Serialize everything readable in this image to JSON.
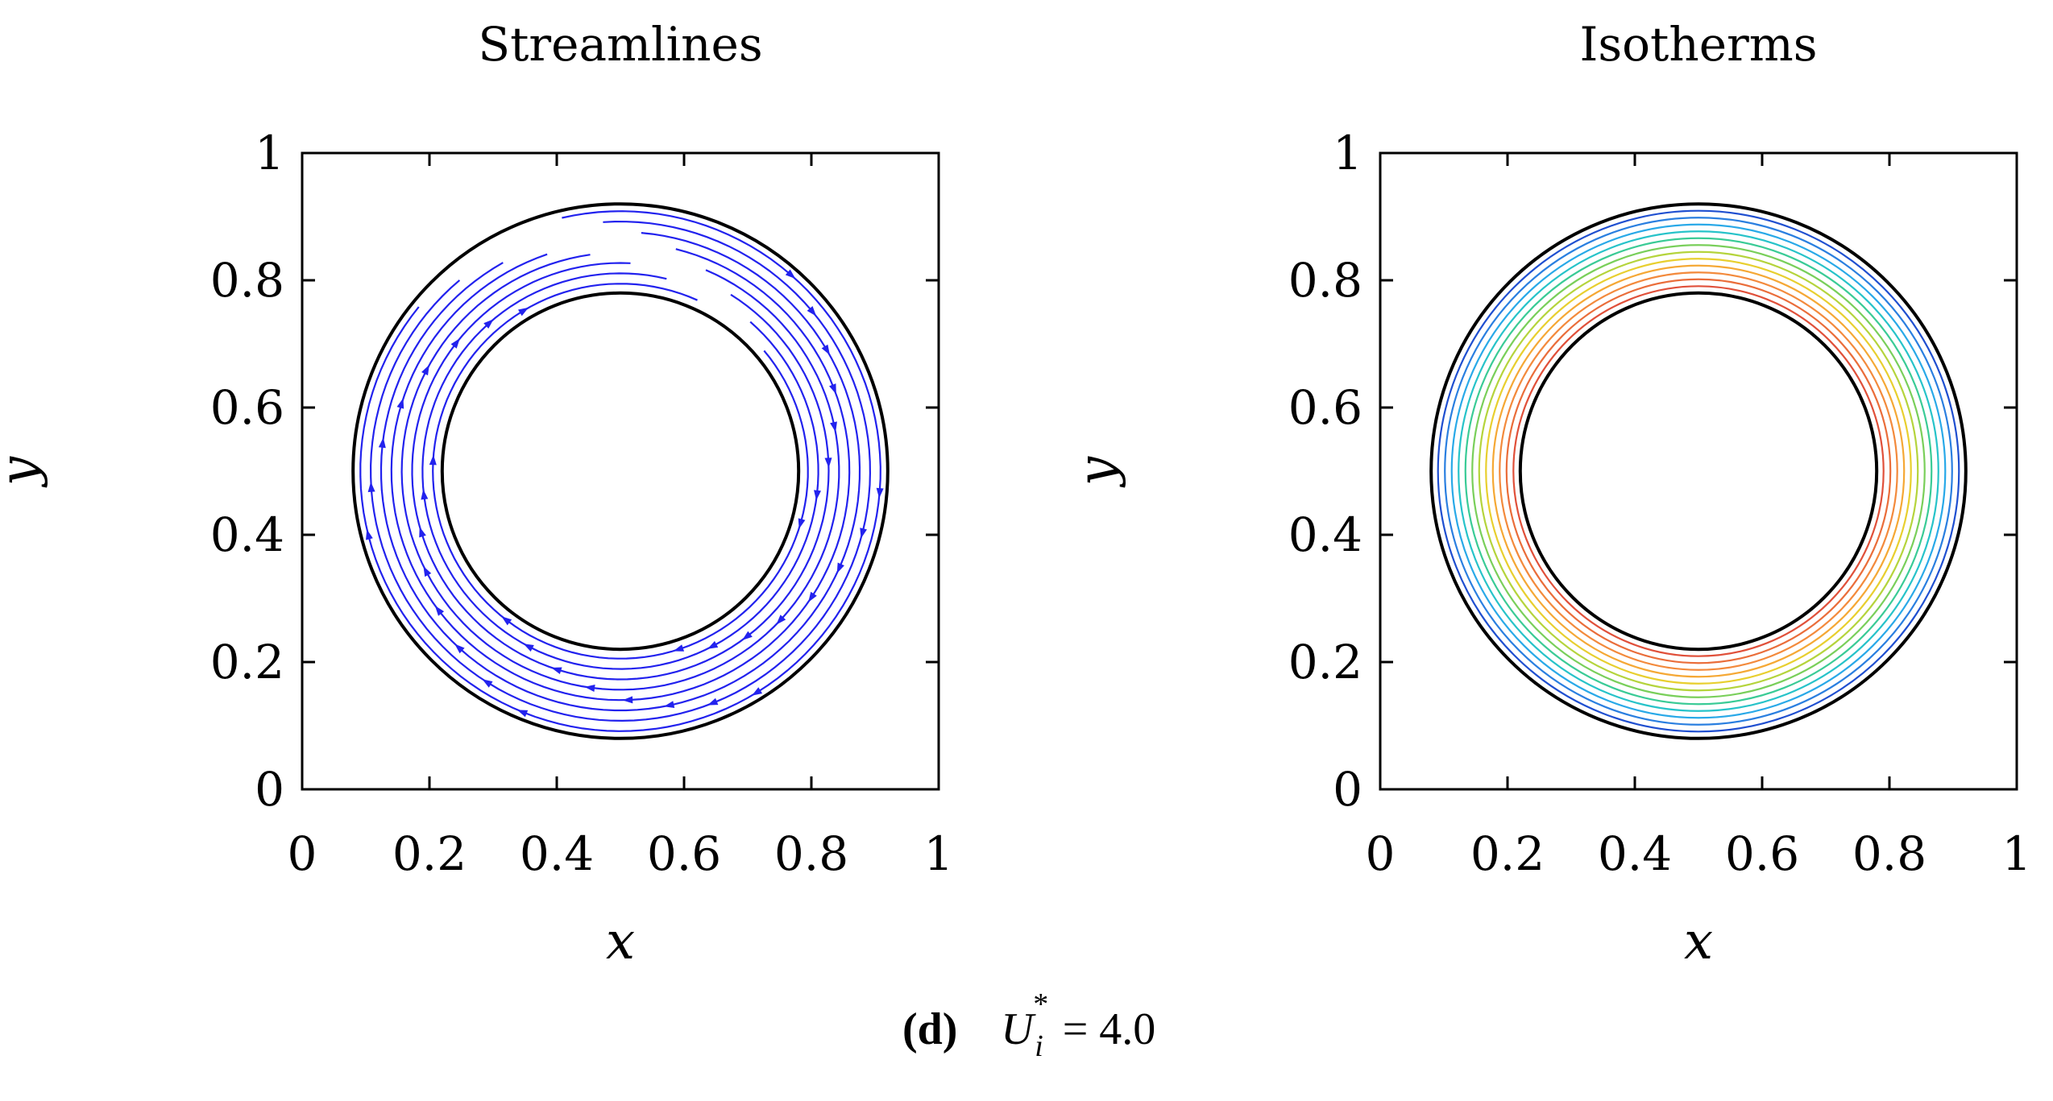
{
  "figure": {
    "panel_label": "(d)",
    "equation": {
      "symbol": "U",
      "superscript": "*",
      "subscript": "i",
      "rest": "= 4.0"
    }
  },
  "chart_data": [
    {
      "type": "contour",
      "title": "Streamlines",
      "xlabel": "x",
      "ylabel": "y",
      "xlim": [
        0,
        1
      ],
      "ylim": [
        0,
        1
      ],
      "xticks": [
        "0",
        "0.2",
        "0.4",
        "0.6",
        "0.8",
        "1"
      ],
      "yticks": [
        "0",
        "0.2",
        "0.4",
        "0.6",
        "0.8",
        "1"
      ],
      "geometry": {
        "center": [
          0.5,
          0.5
        ],
        "inner_radius": 0.28,
        "outer_radius": 0.42
      },
      "streamlines": {
        "color": "#2222ee",
        "direction": "clockwise",
        "count": 8
      },
      "boundary_color": "#000000"
    },
    {
      "type": "contour",
      "title": "Isotherms",
      "xlabel": "x",
      "ylabel": "y",
      "xlim": [
        0,
        1
      ],
      "ylim": [
        0,
        1
      ],
      "xticks": [
        "0",
        "0.2",
        "0.4",
        "0.6",
        "0.8",
        "1"
      ],
      "yticks": [
        "0",
        "0.2",
        "0.4",
        "0.6",
        "0.8",
        "1"
      ],
      "geometry": {
        "center": [
          0.5,
          0.5
        ],
        "inner_radius": 0.28,
        "outer_radius": 0.42
      },
      "isotherms": {
        "colors": [
          "#1f4fd0",
          "#2a7fe0",
          "#29a9e8",
          "#27c3c9",
          "#3acb96",
          "#79cf5a",
          "#b5d43c",
          "#e8cf2f",
          "#f5a835",
          "#f38a3c",
          "#ea6d3a",
          "#e0503a"
        ]
      },
      "boundary_color": "#000000"
    }
  ]
}
